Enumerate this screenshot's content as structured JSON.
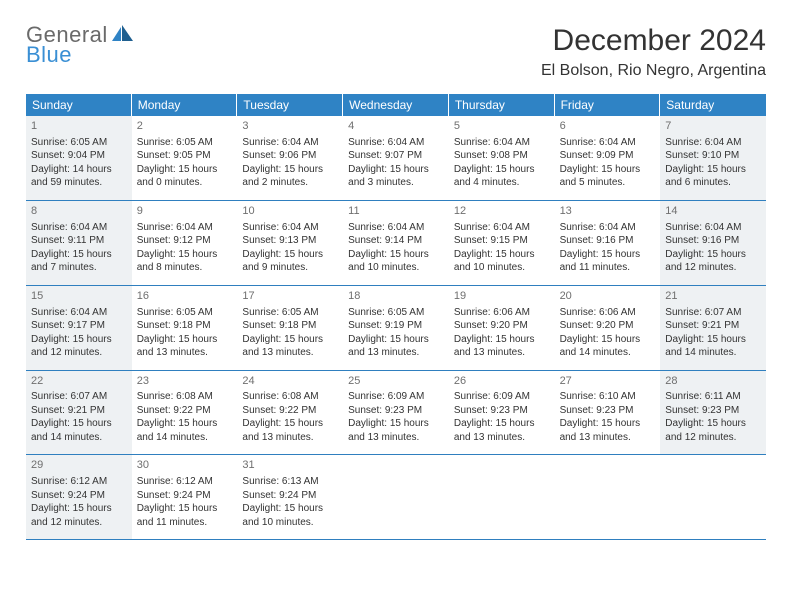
{
  "logo": {
    "text_general": "General",
    "text_blue": "Blue"
  },
  "title": "December 2024",
  "location": "El Bolson, Rio Negro, Argentina",
  "colors": {
    "header_bg": "#2f83c5",
    "header_text": "#ffffff",
    "divider": "#2f7fbf",
    "shaded_bg": "#eef1f3",
    "body_text": "#333333",
    "logo_gray": "#6a6a6a",
    "logo_blue": "#3a8fd4"
  },
  "weekdays": [
    "Sunday",
    "Monday",
    "Tuesday",
    "Wednesday",
    "Thursday",
    "Friday",
    "Saturday"
  ],
  "weeks": [
    [
      {
        "n": "1",
        "shaded": true,
        "sr": "Sunrise: 6:05 AM",
        "ss": "Sunset: 9:04 PM",
        "dl1": "Daylight: 14 hours",
        "dl2": "and 59 minutes."
      },
      {
        "n": "2",
        "shaded": false,
        "sr": "Sunrise: 6:05 AM",
        "ss": "Sunset: 9:05 PM",
        "dl1": "Daylight: 15 hours",
        "dl2": "and 0 minutes."
      },
      {
        "n": "3",
        "shaded": false,
        "sr": "Sunrise: 6:04 AM",
        "ss": "Sunset: 9:06 PM",
        "dl1": "Daylight: 15 hours",
        "dl2": "and 2 minutes."
      },
      {
        "n": "4",
        "shaded": false,
        "sr": "Sunrise: 6:04 AM",
        "ss": "Sunset: 9:07 PM",
        "dl1": "Daylight: 15 hours",
        "dl2": "and 3 minutes."
      },
      {
        "n": "5",
        "shaded": false,
        "sr": "Sunrise: 6:04 AM",
        "ss": "Sunset: 9:08 PM",
        "dl1": "Daylight: 15 hours",
        "dl2": "and 4 minutes."
      },
      {
        "n": "6",
        "shaded": false,
        "sr": "Sunrise: 6:04 AM",
        "ss": "Sunset: 9:09 PM",
        "dl1": "Daylight: 15 hours",
        "dl2": "and 5 minutes."
      },
      {
        "n": "7",
        "shaded": true,
        "sr": "Sunrise: 6:04 AM",
        "ss": "Sunset: 9:10 PM",
        "dl1": "Daylight: 15 hours",
        "dl2": "and 6 minutes."
      }
    ],
    [
      {
        "n": "8",
        "shaded": true,
        "sr": "Sunrise: 6:04 AM",
        "ss": "Sunset: 9:11 PM",
        "dl1": "Daylight: 15 hours",
        "dl2": "and 7 minutes."
      },
      {
        "n": "9",
        "shaded": false,
        "sr": "Sunrise: 6:04 AM",
        "ss": "Sunset: 9:12 PM",
        "dl1": "Daylight: 15 hours",
        "dl2": "and 8 minutes."
      },
      {
        "n": "10",
        "shaded": false,
        "sr": "Sunrise: 6:04 AM",
        "ss": "Sunset: 9:13 PM",
        "dl1": "Daylight: 15 hours",
        "dl2": "and 9 minutes."
      },
      {
        "n": "11",
        "shaded": false,
        "sr": "Sunrise: 6:04 AM",
        "ss": "Sunset: 9:14 PM",
        "dl1": "Daylight: 15 hours",
        "dl2": "and 10 minutes."
      },
      {
        "n": "12",
        "shaded": false,
        "sr": "Sunrise: 6:04 AM",
        "ss": "Sunset: 9:15 PM",
        "dl1": "Daylight: 15 hours",
        "dl2": "and 10 minutes."
      },
      {
        "n": "13",
        "shaded": false,
        "sr": "Sunrise: 6:04 AM",
        "ss": "Sunset: 9:16 PM",
        "dl1": "Daylight: 15 hours",
        "dl2": "and 11 minutes."
      },
      {
        "n": "14",
        "shaded": true,
        "sr": "Sunrise: 6:04 AM",
        "ss": "Sunset: 9:16 PM",
        "dl1": "Daylight: 15 hours",
        "dl2": "and 12 minutes."
      }
    ],
    [
      {
        "n": "15",
        "shaded": true,
        "sr": "Sunrise: 6:04 AM",
        "ss": "Sunset: 9:17 PM",
        "dl1": "Daylight: 15 hours",
        "dl2": "and 12 minutes."
      },
      {
        "n": "16",
        "shaded": false,
        "sr": "Sunrise: 6:05 AM",
        "ss": "Sunset: 9:18 PM",
        "dl1": "Daylight: 15 hours",
        "dl2": "and 13 minutes."
      },
      {
        "n": "17",
        "shaded": false,
        "sr": "Sunrise: 6:05 AM",
        "ss": "Sunset: 9:18 PM",
        "dl1": "Daylight: 15 hours",
        "dl2": "and 13 minutes."
      },
      {
        "n": "18",
        "shaded": false,
        "sr": "Sunrise: 6:05 AM",
        "ss": "Sunset: 9:19 PM",
        "dl1": "Daylight: 15 hours",
        "dl2": "and 13 minutes."
      },
      {
        "n": "19",
        "shaded": false,
        "sr": "Sunrise: 6:06 AM",
        "ss": "Sunset: 9:20 PM",
        "dl1": "Daylight: 15 hours",
        "dl2": "and 13 minutes."
      },
      {
        "n": "20",
        "shaded": false,
        "sr": "Sunrise: 6:06 AM",
        "ss": "Sunset: 9:20 PM",
        "dl1": "Daylight: 15 hours",
        "dl2": "and 14 minutes."
      },
      {
        "n": "21",
        "shaded": true,
        "sr": "Sunrise: 6:07 AM",
        "ss": "Sunset: 9:21 PM",
        "dl1": "Daylight: 15 hours",
        "dl2": "and 14 minutes."
      }
    ],
    [
      {
        "n": "22",
        "shaded": true,
        "sr": "Sunrise: 6:07 AM",
        "ss": "Sunset: 9:21 PM",
        "dl1": "Daylight: 15 hours",
        "dl2": "and 14 minutes."
      },
      {
        "n": "23",
        "shaded": false,
        "sr": "Sunrise: 6:08 AM",
        "ss": "Sunset: 9:22 PM",
        "dl1": "Daylight: 15 hours",
        "dl2": "and 14 minutes."
      },
      {
        "n": "24",
        "shaded": false,
        "sr": "Sunrise: 6:08 AM",
        "ss": "Sunset: 9:22 PM",
        "dl1": "Daylight: 15 hours",
        "dl2": "and 13 minutes."
      },
      {
        "n": "25",
        "shaded": false,
        "sr": "Sunrise: 6:09 AM",
        "ss": "Sunset: 9:23 PM",
        "dl1": "Daylight: 15 hours",
        "dl2": "and 13 minutes."
      },
      {
        "n": "26",
        "shaded": false,
        "sr": "Sunrise: 6:09 AM",
        "ss": "Sunset: 9:23 PM",
        "dl1": "Daylight: 15 hours",
        "dl2": "and 13 minutes."
      },
      {
        "n": "27",
        "shaded": false,
        "sr": "Sunrise: 6:10 AM",
        "ss": "Sunset: 9:23 PM",
        "dl1": "Daylight: 15 hours",
        "dl2": "and 13 minutes."
      },
      {
        "n": "28",
        "shaded": true,
        "sr": "Sunrise: 6:11 AM",
        "ss": "Sunset: 9:23 PM",
        "dl1": "Daylight: 15 hours",
        "dl2": "and 12 minutes."
      }
    ],
    [
      {
        "n": "29",
        "shaded": true,
        "sr": "Sunrise: 6:12 AM",
        "ss": "Sunset: 9:24 PM",
        "dl1": "Daylight: 15 hours",
        "dl2": "and 12 minutes."
      },
      {
        "n": "30",
        "shaded": false,
        "sr": "Sunrise: 6:12 AM",
        "ss": "Sunset: 9:24 PM",
        "dl1": "Daylight: 15 hours",
        "dl2": "and 11 minutes."
      },
      {
        "n": "31",
        "shaded": false,
        "sr": "Sunrise: 6:13 AM",
        "ss": "Sunset: 9:24 PM",
        "dl1": "Daylight: 15 hours",
        "dl2": "and 10 minutes."
      },
      null,
      null,
      null,
      null
    ]
  ]
}
